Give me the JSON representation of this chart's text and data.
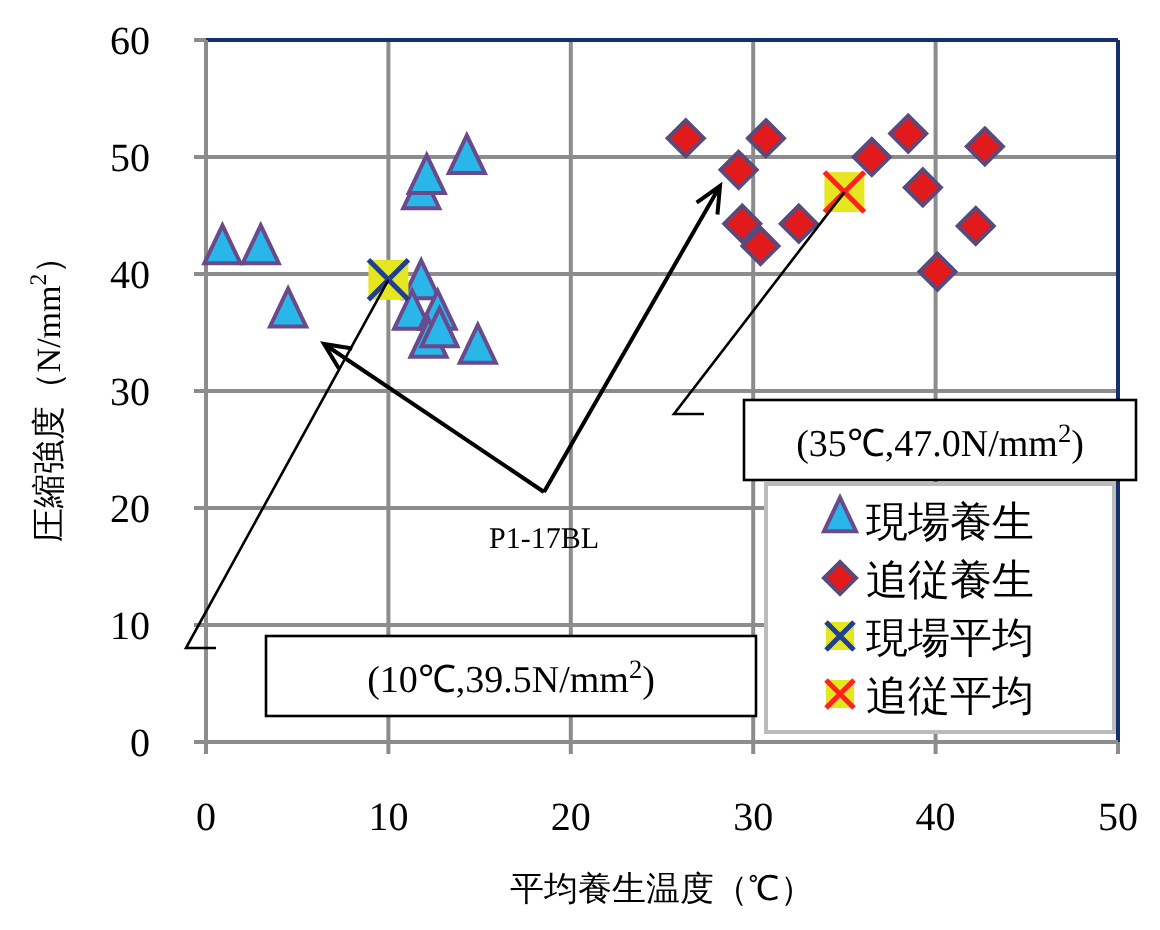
{
  "chart_data": {
    "type": "scatter",
    "xlabel": "平均養生温度（℃）",
    "ylabel": "圧縮強度（N/mm$^{2}$）",
    "xlim": [
      0,
      50
    ],
    "ylim": [
      0,
      60
    ],
    "xticks": [
      0,
      10,
      20,
      30,
      40,
      50
    ],
    "yticks": [
      0,
      10,
      20,
      30,
      40,
      50,
      60
    ],
    "grid": true,
    "legend": "bottom right",
    "series": [
      {
        "name": "現場養生",
        "color": "#29b6e8",
        "marker": "triangle",
        "x": [
          0.9,
          3.0,
          4.5,
          11.8,
          12.1,
          14.3,
          11.8,
          11.3,
          12.7,
          12.2,
          12.8,
          14.9
        ],
        "values": [
          42.0,
          42.0,
          36.6,
          46.7,
          48.0,
          49.7,
          39.0,
          36.4,
          36.4,
          34.0,
          34.9,
          33.5
        ]
      },
      {
        "name": "追従養生",
        "color": "#e31a1c",
        "marker": "diamond",
        "x": [
          26.3,
          30.7,
          29.2,
          29.4,
          30.4,
          32.5,
          36.5,
          38.5,
          39.3,
          42.7,
          42.2,
          40.1
        ],
        "values": [
          51.6,
          51.6,
          48.9,
          44.3,
          42.4,
          44.3,
          50.0,
          52.0,
          47.4,
          50.9,
          44.1,
          40.2
        ]
      },
      {
        "name": "現場平均",
        "color": "#1f3f8f",
        "marker": "cross",
        "x": [
          10
        ],
        "values": [
          39.5
        ]
      },
      {
        "name": "追従平均",
        "color": "#ff2020",
        "marker": "cross",
        "x": [
          35
        ],
        "values": [
          47.0
        ]
      }
    ],
    "annotations": [
      "(35℃,47.0N/mm$^{2}$)",
      "(10℃,39.5N/mm$^{2}$)",
      "P1-17BL"
    ]
  }
}
